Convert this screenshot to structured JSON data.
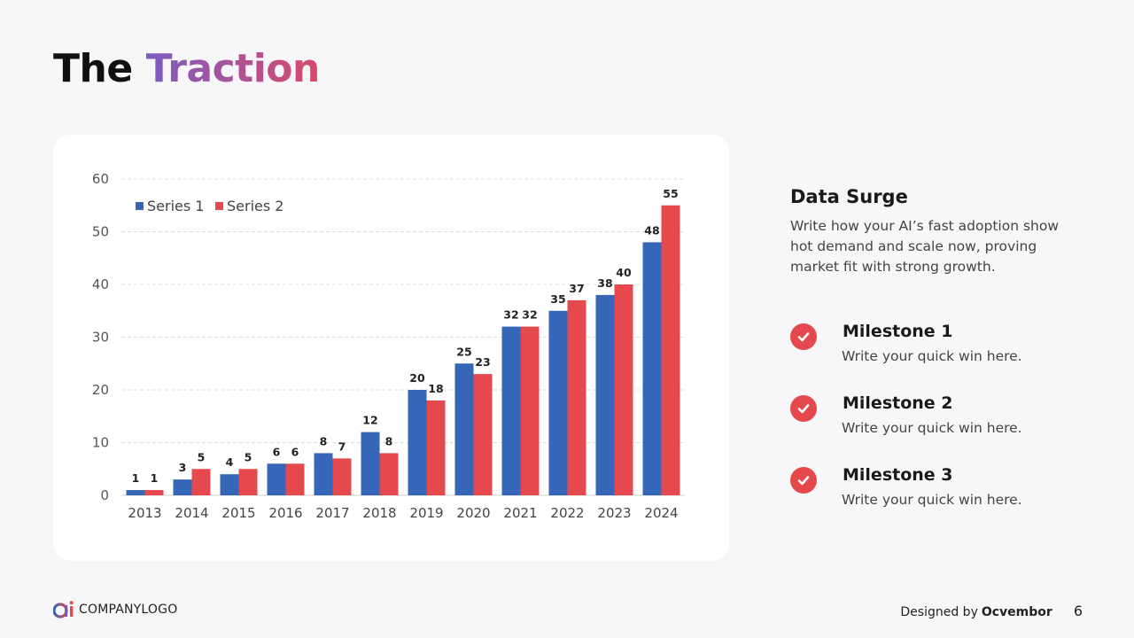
{
  "slide": {
    "title_plain": "The",
    "title_accent": "Traction",
    "page_number": "6"
  },
  "panel": {
    "heading": "Data Surge",
    "description": "Write how your AI’s fast adoption show hot demand and scale now, proving market fit with strong growth."
  },
  "milestones": [
    {
      "title": "Milestone 1",
      "text": "Write your quick win here."
    },
    {
      "title": "Milestone 2",
      "text": "Write your quick win here."
    },
    {
      "title": "Milestone 3",
      "text": "Write your quick win here."
    }
  ],
  "footer": {
    "logo_text": "COMPANYLOGO",
    "designed_by": "Designed by",
    "brand": "Ocvembor"
  },
  "colors": {
    "series1": "#3566b8",
    "series2": "#e5484d",
    "accent_start": "#7c5cc4",
    "accent_end": "#d84a6a"
  },
  "icons": {
    "milestone": "check-circle-icon",
    "logo": "ai-logo-icon"
  },
  "chart_data": {
    "type": "bar",
    "categories": [
      "2013",
      "2014",
      "2015",
      "2016",
      "2017",
      "2018",
      "2019",
      "2020",
      "2021",
      "2022",
      "2023",
      "2024"
    ],
    "series": [
      {
        "name": "Series 1",
        "values": [
          1,
          3,
          4,
          6,
          8,
          12,
          20,
          25,
          32,
          35,
          38,
          48
        ]
      },
      {
        "name": "Series 2",
        "values": [
          1,
          5,
          5,
          6,
          7,
          8,
          18,
          23,
          32,
          37,
          40,
          55
        ]
      }
    ],
    "yticks": [
      0,
      10,
      20,
      30,
      40,
      50,
      60
    ],
    "ylim": [
      0,
      60
    ],
    "grid": true,
    "legend": "top-left",
    "data_labels": true
  }
}
